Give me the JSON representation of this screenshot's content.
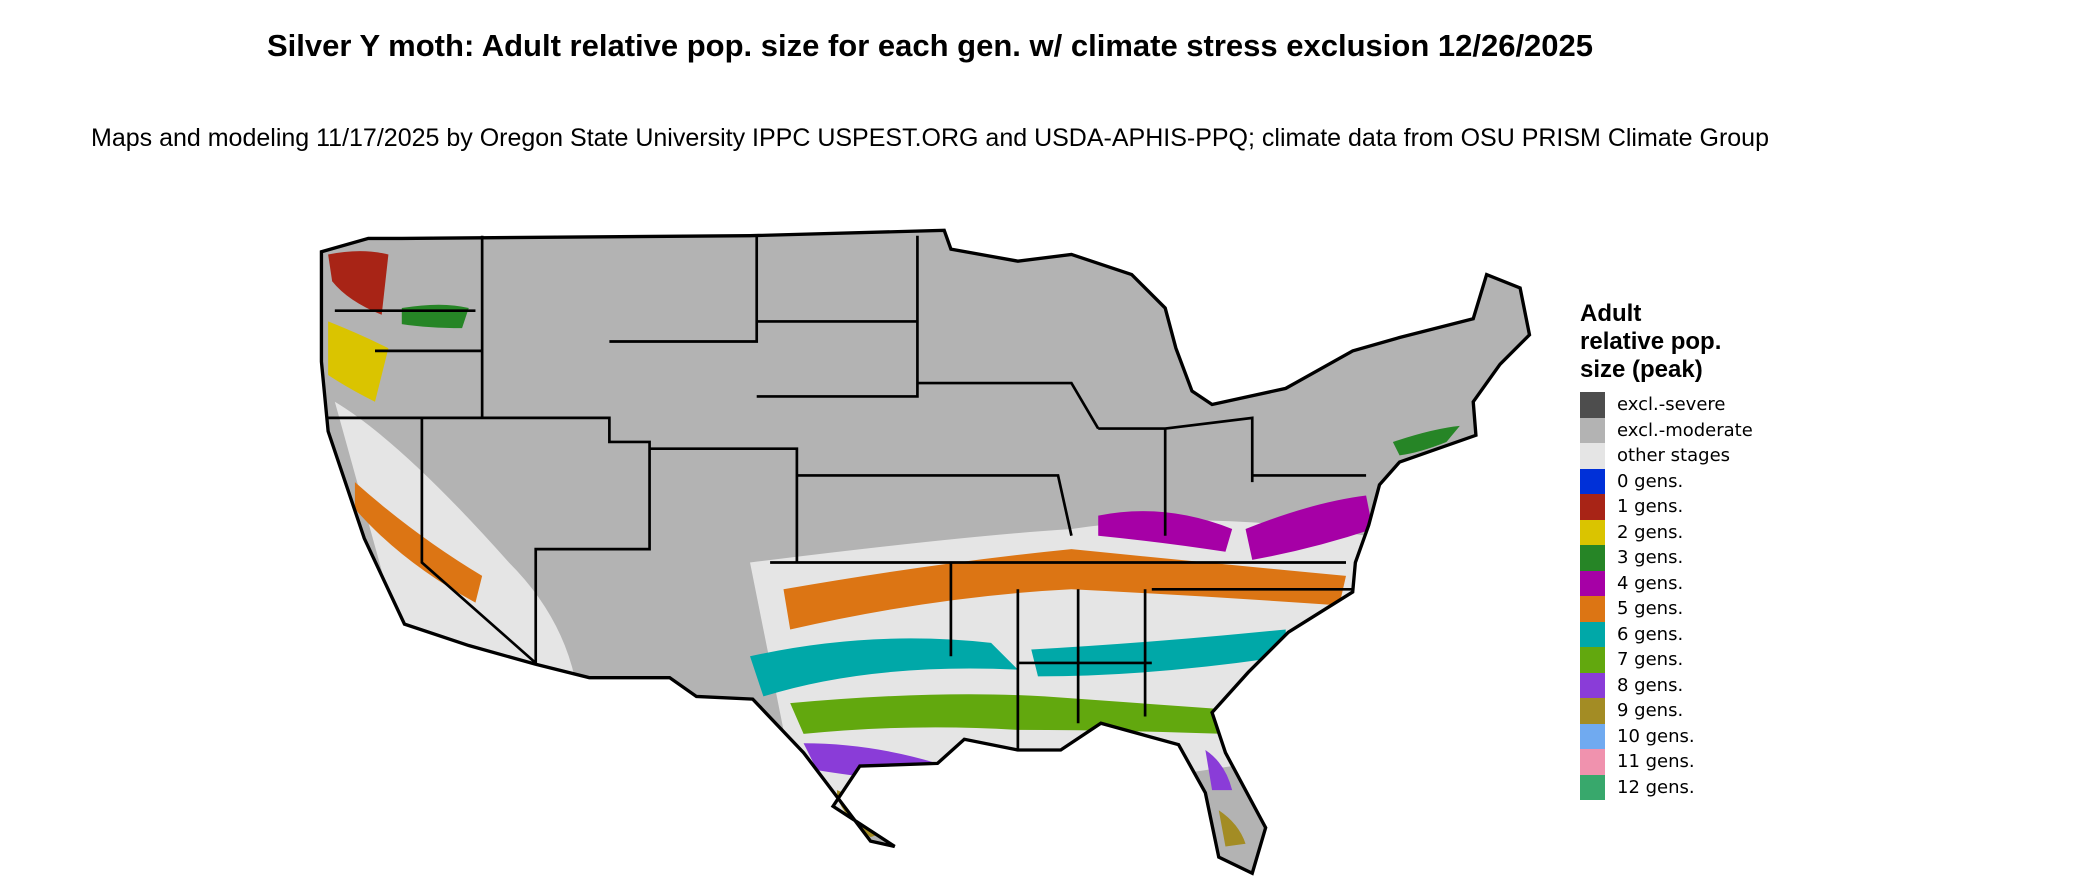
{
  "title": "Silver Y moth: Adult relative pop. size for each gen. w/ climate stress exclusion 12/26/2025",
  "subtitle": "Maps and modeling 11/17/2025 by Oregon State University IPPC USPEST.ORG and USDA-APHIS-PPQ; climate data from OSU PRISM Climate Group",
  "legend": {
    "title": "Adult relative pop. size (peak)",
    "items": [
      {
        "label": "excl.-severe",
        "color": "#4d4d4d"
      },
      {
        "label": "excl.-moderate",
        "color": "#b3b3b3"
      },
      {
        "label": "other stages",
        "color": "#e5e5e5"
      },
      {
        "label": "0 gens.",
        "color": "#0030d8"
      },
      {
        "label": "1 gens.",
        "color": "#a82416"
      },
      {
        "label": "2 gens.",
        "color": "#dac400"
      },
      {
        "label": "3 gens.",
        "color": "#268526"
      },
      {
        "label": "4 gens.",
        "color": "#a600a6"
      },
      {
        "label": "5 gens.",
        "color": "#dc7514"
      },
      {
        "label": "6 gens.",
        "color": "#00a8a8"
      },
      {
        "label": "7 gens.",
        "color": "#62a80e"
      },
      {
        "label": "8 gens.",
        "color": "#8a3cd8"
      },
      {
        "label": "9 gens.",
        "color": "#a38c24"
      },
      {
        "label": "10 gens.",
        "color": "#70aaf0"
      },
      {
        "label": "11 gens.",
        "color": "#f092ae"
      },
      {
        "label": "12 gens.",
        "color": "#38a86c"
      }
    ]
  }
}
